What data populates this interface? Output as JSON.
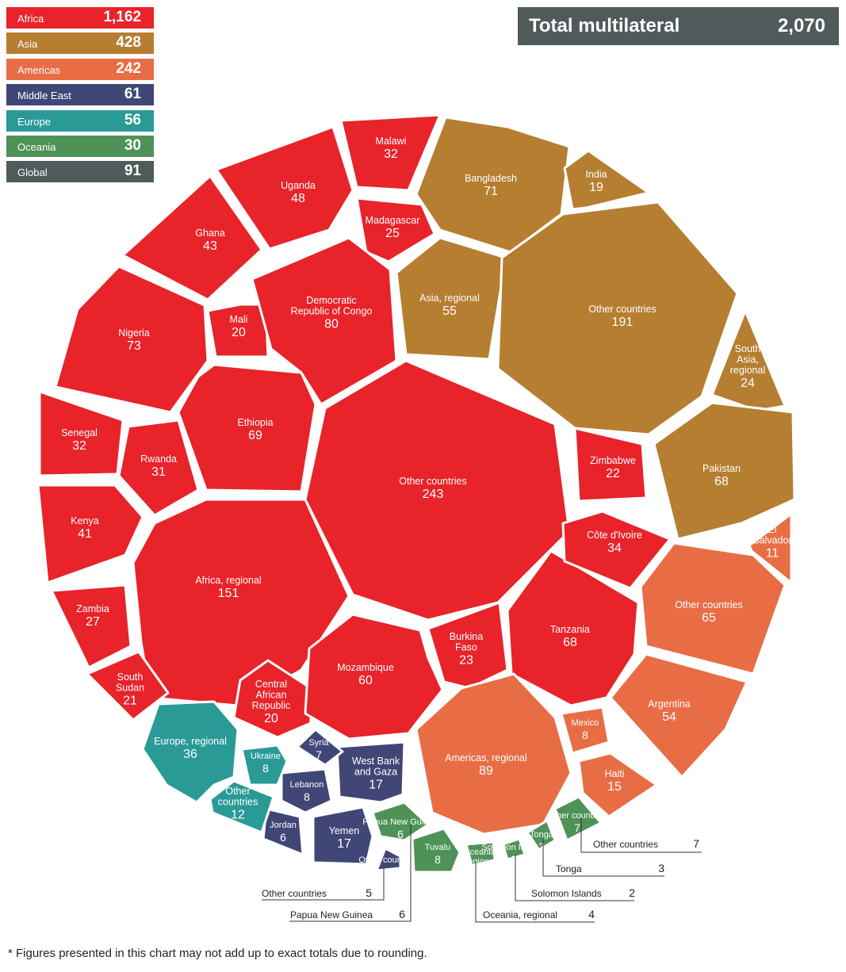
{
  "total": {
    "label": "Total multilateral",
    "value": "2,070"
  },
  "legend": [
    {
      "name": "Africa",
      "value": "1,162",
      "color": "#e8232a"
    },
    {
      "name": "Asia",
      "value": "428",
      "color": "#b57e31"
    },
    {
      "name": "Americas",
      "value": "242",
      "color": "#e86d45"
    },
    {
      "name": "Middle East",
      "value": "61",
      "color": "#404777"
    },
    {
      "name": "Europe",
      "value": "56",
      "color": "#2a9a96"
    },
    {
      "name": "Oceania",
      "value": "30",
      "color": "#4e9257"
    },
    {
      "name": "Global",
      "value": "91",
      "color": "#505a5b"
    }
  ],
  "footnote": "* Figures presented in this chart may not add up to exact totals due to rounding.",
  "chart_data": {
    "type": "voronoi-treemap",
    "total": 2070,
    "regions": [
      {
        "region": "Africa",
        "total": 1162,
        "color": "#e8232a",
        "items": [
          {
            "name": "Other countries",
            "value": 243
          },
          {
            "name": "Africa, regional",
            "value": 151
          },
          {
            "name": "Democratic Republic of Congo",
            "value": 80
          },
          {
            "name": "Nigeria",
            "value": 73
          },
          {
            "name": "Ethiopia",
            "value": 69
          },
          {
            "name": "Tanzania",
            "value": 68
          },
          {
            "name": "Mozambique",
            "value": 60
          },
          {
            "name": "Uganda",
            "value": 48
          },
          {
            "name": "Ghana",
            "value": 43
          },
          {
            "name": "Kenya",
            "value": 41
          },
          {
            "name": "Côte d'Ivoire",
            "value": 34
          },
          {
            "name": "Malawi",
            "value": 32
          },
          {
            "name": "Senegal",
            "value": 32
          },
          {
            "name": "Rwanda",
            "value": 31
          },
          {
            "name": "Zambia",
            "value": 27
          },
          {
            "name": "Madagascar",
            "value": 25
          },
          {
            "name": "Burkina Faso",
            "value": 23
          },
          {
            "name": "Zimbabwe",
            "value": 22
          },
          {
            "name": "South Sudan",
            "value": 21
          },
          {
            "name": "Mali",
            "value": 20
          },
          {
            "name": "Central African Republic",
            "value": 20
          }
        ]
      },
      {
        "region": "Asia",
        "total": 428,
        "color": "#b57e31",
        "items": [
          {
            "name": "Other countries",
            "value": 191
          },
          {
            "name": "Bangladesh",
            "value": 71
          },
          {
            "name": "Pakistan",
            "value": 68
          },
          {
            "name": "Asia, regional",
            "value": 55
          },
          {
            "name": "South Asia, regional",
            "value": 24
          },
          {
            "name": "India",
            "value": 19
          }
        ]
      },
      {
        "region": "Americas",
        "total": 242,
        "color": "#e86d45",
        "items": [
          {
            "name": "Americas, regional",
            "value": 89
          },
          {
            "name": "Other countries",
            "value": 65
          },
          {
            "name": "Argentina",
            "value": 54
          },
          {
            "name": "Haiti",
            "value": 15
          },
          {
            "name": "El Salvador",
            "value": 11
          },
          {
            "name": "Mexico",
            "value": 8
          }
        ]
      },
      {
        "region": "Middle East",
        "total": 61,
        "color": "#404777",
        "items": [
          {
            "name": "West Bank and Gaza",
            "value": 17
          },
          {
            "name": "Yemen",
            "value": 17
          },
          {
            "name": "Lebanon",
            "value": 8
          },
          {
            "name": "Syria",
            "value": 7
          },
          {
            "name": "Jordan",
            "value": 6
          },
          {
            "name": "Other countries",
            "value": 5
          }
        ]
      },
      {
        "region": "Europe",
        "total": 56,
        "color": "#2a9a96",
        "items": [
          {
            "name": "Europe, regional",
            "value": 36
          },
          {
            "name": "Other countries",
            "value": 12
          },
          {
            "name": "Ukraine",
            "value": 8
          }
        ]
      },
      {
        "region": "Oceania",
        "total": 30,
        "color": "#4e9257",
        "items": [
          {
            "name": "Tuvalu",
            "value": 8
          },
          {
            "name": "Other countries",
            "value": 7
          },
          {
            "name": "Papua New Guinea",
            "value": 6
          },
          {
            "name": "Oceania, regional",
            "value": 4
          },
          {
            "name": "Tonga",
            "value": 3
          },
          {
            "name": "Solomon Islands",
            "value": 2
          }
        ]
      }
    ]
  }
}
